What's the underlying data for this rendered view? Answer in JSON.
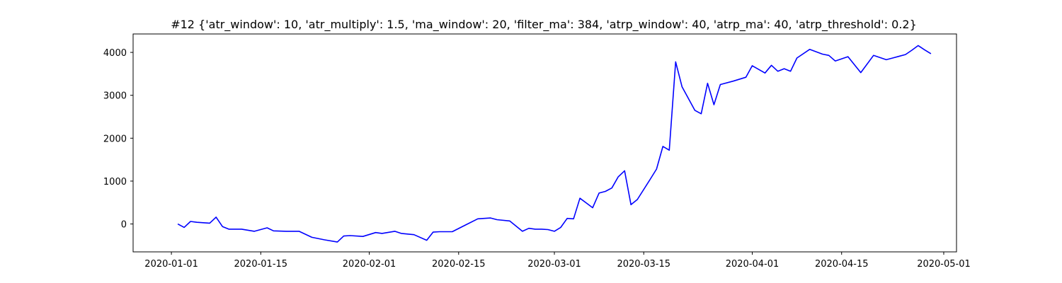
{
  "chart_data": {
    "type": "line",
    "title": "#12 {'atr_window': 10, 'atr_multiply': 1.5, 'ma_window': 20, 'filter_ma': 384, 'atrp_window': 40, 'atrp_ma': 40, 'atrp_threshold': 0.2}",
    "xlabel": "",
    "ylabel": "",
    "xlim": [
      "2019-12-26",
      "2020-05-03"
    ],
    "ylim": [
      -650,
      4430
    ],
    "grid": false,
    "legend": "none",
    "x_ticks": [
      "2020-01-01",
      "2020-01-15",
      "2020-02-01",
      "2020-02-15",
      "2020-03-01",
      "2020-03-15",
      "2020-04-01",
      "2020-04-15",
      "2020-05-01"
    ],
    "y_ticks": [
      0,
      1000,
      2000,
      3000,
      4000
    ],
    "y_tick_labels": [
      "0",
      "1000",
      "2000",
      "3000",
      "4000"
    ],
    "line_color": "#0000ff",
    "series": [
      {
        "x": [
          "2020-01-02",
          "2020-01-03",
          "2020-01-04",
          "2020-01-05",
          "2020-01-07",
          "2020-01-08",
          "2020-01-09",
          "2020-01-10",
          "2020-01-12",
          "2020-01-14",
          "2020-01-16",
          "2020-01-17",
          "2020-01-19",
          "2020-01-21",
          "2020-01-23",
          "2020-01-25",
          "2020-01-27",
          "2020-01-28",
          "2020-01-29",
          "2020-01-31",
          "2020-02-02",
          "2020-02-03",
          "2020-02-05",
          "2020-02-06",
          "2020-02-08",
          "2020-02-10",
          "2020-02-11",
          "2020-02-12",
          "2020-02-14",
          "2020-02-16",
          "2020-02-18",
          "2020-02-20",
          "2020-02-21",
          "2020-02-23",
          "2020-02-25",
          "2020-02-26",
          "2020-02-27",
          "2020-02-28",
          "2020-02-29",
          "2020-03-01",
          "2020-03-02",
          "2020-03-03",
          "2020-03-04",
          "2020-03-05",
          "2020-03-06",
          "2020-03-07",
          "2020-03-08",
          "2020-03-09",
          "2020-03-10",
          "2020-03-11",
          "2020-03-12",
          "2020-03-13",
          "2020-03-14",
          "2020-03-16",
          "2020-03-17",
          "2020-03-18",
          "2020-03-19",
          "2020-03-20",
          "2020-03-21",
          "2020-03-23",
          "2020-03-24",
          "2020-03-25",
          "2020-03-26",
          "2020-03-27",
          "2020-03-29",
          "2020-03-31",
          "2020-04-01",
          "2020-04-03",
          "2020-04-04",
          "2020-04-05",
          "2020-04-06",
          "2020-04-07",
          "2020-04-08",
          "2020-04-10",
          "2020-04-12",
          "2020-04-13",
          "2020-04-14",
          "2020-04-16",
          "2020-04-18",
          "2020-04-20",
          "2020-04-22",
          "2020-04-23",
          "2020-04-25",
          "2020-04-26",
          "2020-04-27",
          "2020-04-28",
          "2020-04-29"
        ],
        "values": [
          0,
          -80,
          60,
          40,
          20,
          160,
          -60,
          -120,
          -120,
          -170,
          -90,
          -160,
          -170,
          -170,
          -310,
          -370,
          -420,
          -280,
          -270,
          -290,
          -200,
          -220,
          -170,
          -220,
          -250,
          -380,
          -190,
          -180,
          -180,
          -30,
          120,
          140,
          100,
          70,
          -170,
          -100,
          -120,
          -120,
          -130,
          -170,
          -80,
          130,
          120,
          600,
          490,
          380,
          720,
          760,
          840,
          1100,
          1240,
          450,
          570,
          1040,
          1280,
          1810,
          1720,
          3780,
          3200,
          2650,
          2570,
          3280,
          2780,
          3250,
          3330,
          3420,
          3690,
          3520,
          3700,
          3560,
          3620,
          3560,
          3870,
          4070,
          3960,
          3930,
          3800,
          3900,
          3530,
          3930,
          3830,
          3870,
          3950,
          4050,
          4160,
          4060,
          3970
        ]
      }
    ]
  }
}
